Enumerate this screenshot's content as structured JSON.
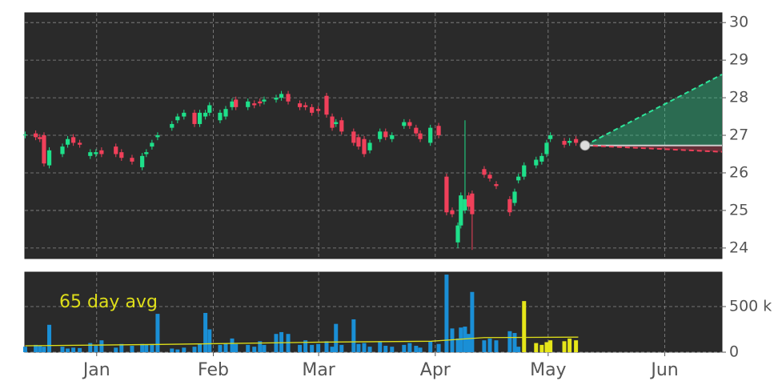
{
  "chart_data": {
    "type": "candlestick",
    "xlim": [
      -19.1,
      166.2
    ],
    "xticks": [
      {
        "value": 0,
        "label": "Jan"
      },
      {
        "value": 31,
        "label": "Feb"
      },
      {
        "value": 59,
        "label": "Mar"
      },
      {
        "value": 90,
        "label": "Apr"
      },
      {
        "value": 120,
        "label": "May"
      },
      {
        "value": 151,
        "label": "Jun"
      }
    ],
    "ylim": [
      23.72,
      30.26
    ],
    "yticks": [
      24,
      25,
      26,
      27,
      28,
      29,
      30
    ],
    "grid": true,
    "up_color": "#1ee08a",
    "down_color": "#f0405a",
    "x": [
      -19,
      -16.2,
      -15.1,
      -14,
      -12.6,
      -9.1,
      -7.7,
      -6.2,
      -4.5,
      -1.7,
      -0.2,
      1.3,
      5.1,
      6.6,
      9.4,
      12.1,
      13.2,
      14.7,
      16.2,
      20,
      21.5,
      23.2,
      26,
      27.4,
      28.9,
      30,
      32.8,
      34.3,
      36,
      37,
      40.2,
      41.9,
      43.4,
      44.5,
      47.7,
      49.1,
      50.9,
      54,
      55.5,
      57.2,
      58.9,
      61.1,
      62.6,
      63.6,
      65.1,
      68.3,
      69.6,
      71.1,
      72.6,
      75.3,
      76.8,
      78.5,
      81.7,
      83.2,
      84.9,
      86,
      88.7,
      90.9,
      93,
      94.5,
      96,
      96.8,
      97.9,
      98.9,
      99.8,
      103,
      104.5,
      106.2,
      109.8,
      111.1,
      112.1,
      113.6,
      116.8,
      118.3,
      119.6,
      120.6,
      124.3,
      125.7,
      127.4
    ],
    "open": [
      27,
      27.05,
      26.95,
      27,
      26.2,
      26.5,
      26.75,
      26.95,
      26.8,
      26.45,
      26.5,
      26.6,
      26.7,
      26.55,
      26.4,
      26.15,
      26.5,
      26.7,
      26.95,
      27.2,
      27.4,
      27.5,
      27.6,
      27.3,
      27.5,
      27.6,
      27.4,
      27.5,
      27.75,
      27.95,
      27.75,
      27.85,
      27.9,
      27.9,
      27.95,
      28,
      28.1,
      27.85,
      27.8,
      27.75,
      27.7,
      28.05,
      27.5,
      27.3,
      27.4,
      27.1,
      26.95,
      26.9,
      26.6,
      26.9,
      27.1,
      26.9,
      27.25,
      27.35,
      27.2,
      27.05,
      26.8,
      27.25,
      25.9,
      25,
      24.15,
      24.6,
      25,
      25.4,
      25.45,
      26.1,
      25.95,
      25.7,
      25.3,
      25.2,
      25.8,
      25.9,
      26.2,
      26.3,
      26.5,
      26.9,
      26.85,
      26.8,
      26.9
    ],
    "high": [
      27.1,
      27.13,
      27.03,
      27.08,
      26.68,
      26.78,
      26.98,
      27.03,
      26.88,
      26.63,
      26.63,
      26.68,
      26.78,
      26.63,
      26.48,
      26.53,
      26.63,
      26.88,
      27.08,
      27.38,
      27.58,
      27.68,
      27.68,
      27.68,
      27.68,
      27.88,
      27.68,
      27.78,
      27.98,
      28.03,
      27.98,
      27.93,
      27.98,
      28.03,
      28.08,
      28.18,
      28.18,
      27.93,
      27.88,
      27.83,
      27.78,
      28.13,
      27.58,
      27.43,
      27.48,
      27.18,
      27.03,
      26.98,
      26.88,
      27.18,
      27.18,
      27.08,
      27.43,
      27.43,
      27.28,
      27.13,
      27.28,
      27.33,
      25.98,
      25.08,
      24.68,
      25.48,
      27.4,
      25.48,
      25.53,
      26.18,
      26.03,
      25.78,
      25.38,
      25.58,
      25.98,
      26.28,
      26.43,
      26.53,
      26.88,
      27.08,
      26.93,
      26.93,
      26.98
    ],
    "low": [
      26.92,
      26.87,
      26.82,
      26.17,
      26.12,
      26.42,
      26.67,
      26.72,
      26.67,
      26.37,
      26.42,
      26.42,
      26.42,
      26.32,
      26.22,
      26.07,
      26.42,
      26.62,
      26.87,
      27.12,
      27.32,
      27.42,
      27.22,
      27.22,
      27.42,
      27.52,
      27.32,
      27.42,
      27.67,
      27.67,
      27.67,
      27.72,
      27.77,
      27.82,
      27.87,
      27.92,
      27.82,
      27.67,
      27.67,
      27.52,
      27.57,
      27.47,
      27.12,
      27.22,
      27.02,
      26.72,
      26.62,
      26.42,
      26.52,
      26.82,
      26.87,
      26.82,
      27.17,
      27.17,
      26.97,
      26.82,
      26.72,
      26.92,
      24.87,
      24.82,
      24.0,
      24.52,
      24.92,
      25.02,
      23.95,
      25.87,
      25.77,
      25.57,
      24.85,
      25.12,
      25.72,
      25.82,
      26.12,
      26.22,
      26.42,
      26.82,
      26.67,
      26.72,
      26.72
    ],
    "close": [
      27.02,
      26.95,
      26.9,
      26.25,
      26.6,
      26.7,
      26.9,
      26.8,
      26.75,
      26.55,
      26.55,
      26.5,
      26.5,
      26.4,
      26.3,
      26.45,
      26.55,
      26.8,
      27,
      27.3,
      27.5,
      27.6,
      27.3,
      27.6,
      27.6,
      27.8,
      27.6,
      27.7,
      27.9,
      27.75,
      27.9,
      27.8,
      27.85,
      27.95,
      28,
      28.1,
      27.9,
      27.75,
      27.75,
      27.6,
      27.65,
      27.55,
      27.2,
      27.35,
      27.1,
      26.8,
      26.7,
      26.5,
      26.8,
      27.1,
      26.95,
      27,
      27.35,
      27.25,
      27.05,
      26.9,
      27.2,
      27,
      24.95,
      24.9,
      24.6,
      25.4,
      25.3,
      25.1,
      24.9,
      25.95,
      25.85,
      25.65,
      24.95,
      25.5,
      25.9,
      26.2,
      26.35,
      26.45,
      26.8,
      27,
      26.75,
      26.85,
      26.8
    ],
    "forecast": {
      "x": [
        129.8,
        166.2
      ],
      "upper": [
        26.73,
        28.62
      ],
      "middle": [
        26.73,
        26.73
      ],
      "lower": [
        26.73,
        26.56
      ],
      "upper_color": "#2ee59a",
      "lower_color": "#f0405a",
      "middle_color": "#cccccc"
    },
    "volume": {
      "ylim": [
        0,
        877000
      ],
      "yticks": [
        0,
        {
          "value": 500000,
          "label": "500 k"
        }
      ],
      "series": [
        {
          "color": "#1a8fd6",
          "x": [
            -19,
            -16.2,
            -15.1,
            -14,
            -12.6,
            -9.1,
            -7.7,
            -6.2,
            -4.5,
            -1.7,
            -0.2,
            1.3,
            5.1,
            6.6,
            9.4,
            12.1,
            13.2,
            14.7,
            16.2,
            20,
            21.5,
            23.2,
            26,
            27.4,
            28.9,
            30,
            32.8,
            34.3,
            36,
            37,
            40.2,
            41.9,
            43.4,
            44.5,
            47.7,
            49.1,
            50.9,
            54,
            55.5,
            57.2,
            58.9,
            61.1,
            62.6,
            63.6,
            65.1,
            68.3,
            69.6,
            71.1,
            72.6,
            75.3,
            76.8,
            78.5,
            81.7,
            83.2,
            84.9,
            86,
            88.7,
            90.9,
            93,
            94.5,
            96,
            96.8,
            97.9,
            98.9,
            99.8,
            103,
            104.5,
            106.2,
            109.8,
            111.1,
            112.1
          ],
          "values": [
            60000,
            80000,
            70000,
            60000,
            300000,
            60000,
            40000,
            50000,
            45000,
            100000,
            70000,
            130000,
            50000,
            90000,
            70000,
            90000,
            80000,
            90000,
            420000,
            40000,
            30000,
            50000,
            60000,
            90000,
            430000,
            250000,
            80000,
            100000,
            150000,
            90000,
            80000,
            60000,
            120000,
            80000,
            200000,
            220000,
            200000,
            80000,
            130000,
            80000,
            90000,
            120000,
            60000,
            310000,
            80000,
            360000,
            90000,
            100000,
            60000,
            120000,
            70000,
            60000,
            80000,
            100000,
            70000,
            50000,
            120000,
            90000,
            850000,
            260000,
            150000,
            270000,
            280000,
            200000,
            660000,
            130000,
            150000,
            130000,
            230000,
            210000,
            60000
          ]
        },
        {
          "color": "#e6e619",
          "x": [
            113.6,
            116.8,
            118.3,
            119.6,
            120.6,
            124.3,
            125.7,
            127.4
          ],
          "values": [
            560000,
            100000,
            80000,
            110000,
            130000,
            120000,
            150000,
            130000
          ]
        }
      ],
      "average": {
        "label": "65 day avg",
        "color": "#dede1a",
        "x": [
          -19,
          17,
          60,
          89,
          96,
          103,
          128
        ],
        "values": [
          70000,
          85000,
          110000,
          120000,
          140000,
          160000,
          165000
        ]
      }
    }
  }
}
